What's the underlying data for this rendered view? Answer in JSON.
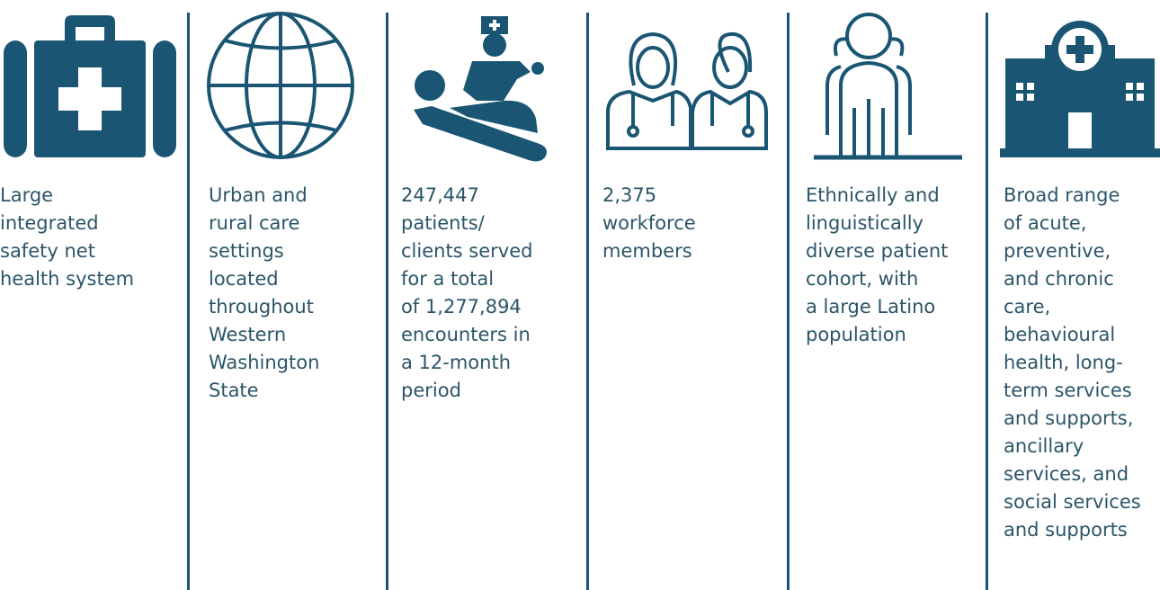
{
  "columns": [
    {
      "lines": [
        "Large",
        "integrated",
        "safety net",
        "health system"
      ]
    },
    {
      "lines": [
        "Urban and",
        "rural care",
        "settings",
        "located",
        "throughout",
        "Western",
        "Washington",
        "State"
      ]
    },
    {
      "lines": [
        "247,447",
        "patients/",
        "clients served",
        "for a total",
        "of 1,277,894",
        "encounters in",
        "a 12-month",
        "period"
      ]
    },
    {
      "lines": [
        "2,375",
        "workforce",
        "members"
      ]
    },
    {
      "lines": [
        "Ethnically and",
        "linguistically",
        "diverse patient",
        "cohort, with",
        "a large Latino",
        "population"
      ]
    },
    {
      "lines": [
        "Broad range",
        "of acute,",
        "preventive,",
        "and chronic",
        "care,",
        "behavioural",
        "health, long-",
        "term services",
        "and supports,",
        "ancillary",
        "services, and",
        "social services",
        "and supports"
      ]
    }
  ]
}
